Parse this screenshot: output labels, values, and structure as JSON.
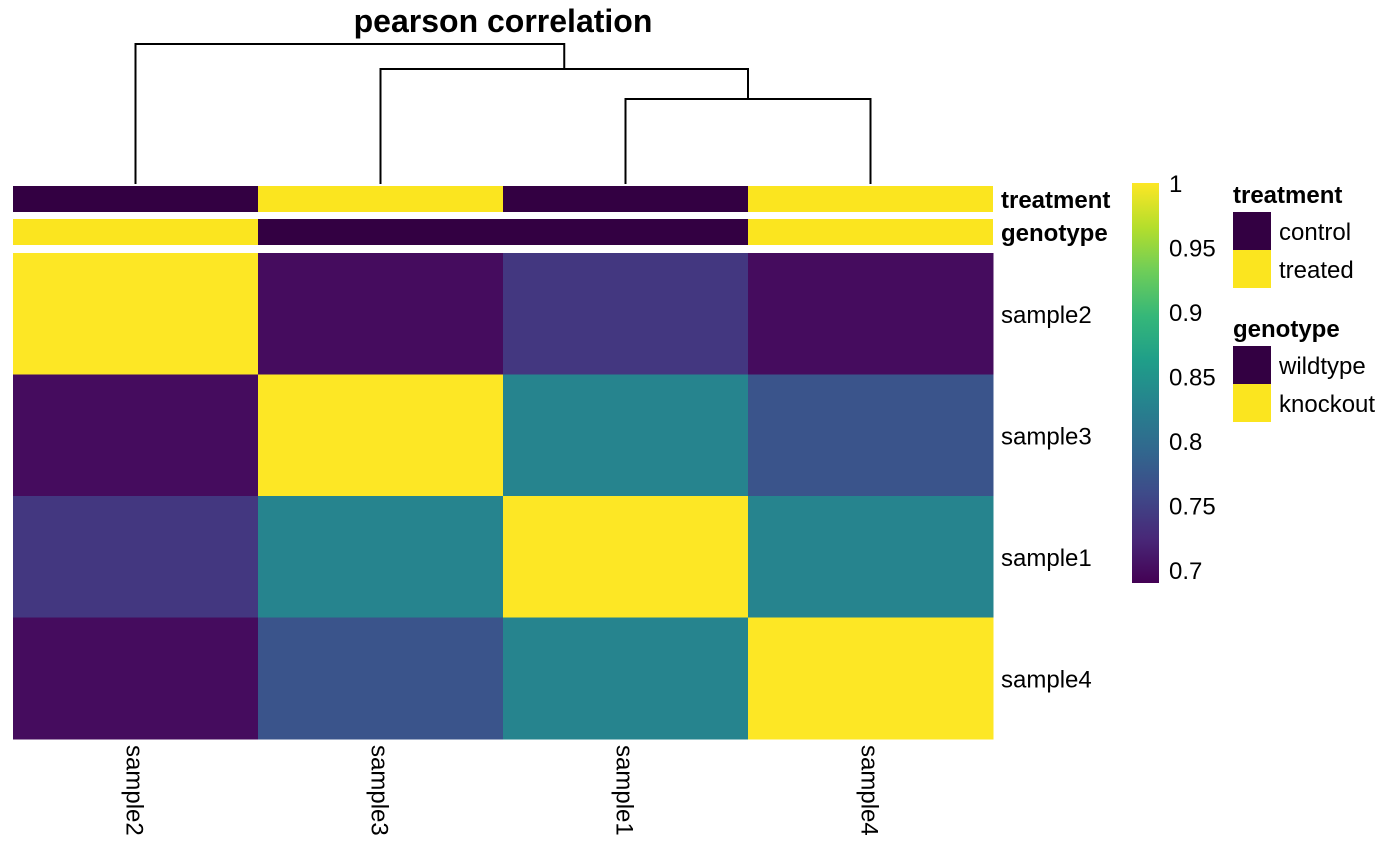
{
  "chart_data": {
    "type": "heatmap",
    "title": "pearson correlation",
    "columns": [
      "sample2",
      "sample3",
      "sample1",
      "sample4"
    ],
    "rows": [
      "sample2",
      "sample3",
      "sample1",
      "sample4"
    ],
    "values": [
      [
        1.0,
        0.7,
        0.74,
        0.7
      ],
      [
        0.7,
        1.0,
        0.83,
        0.77
      ],
      [
        0.74,
        0.83,
        1.0,
        0.83
      ],
      [
        0.7,
        0.77,
        0.83,
        1.0
      ]
    ],
    "color_scale": {
      "name": "viridis",
      "range": [
        0.69,
        1.0
      ],
      "ticks": [
        "1",
        "0.95",
        "0.9",
        "0.85",
        "0.8",
        "0.75",
        "0.7"
      ],
      "tick_values": [
        1.0,
        0.95,
        0.9,
        0.85,
        0.8,
        0.75,
        0.7
      ]
    },
    "annotations": [
      {
        "name": "treatment",
        "values": [
          "control",
          "treated",
          "control",
          "treated"
        ]
      },
      {
        "name": "genotype",
        "values": [
          "knockout",
          "wildtype",
          "wildtype",
          "knockout"
        ]
      }
    ],
    "legends": [
      {
        "title": "treatment",
        "items": [
          {
            "label": "control",
            "color": "#330042"
          },
          {
            "label": "treated",
            "color": "#FBE51F"
          }
        ]
      },
      {
        "title": "genotype",
        "items": [
          {
            "label": "wildtype",
            "color": "#330042"
          },
          {
            "label": "knockout",
            "color": "#FBE51F"
          }
        ]
      }
    ],
    "dendrogram": {
      "merges": [
        {
          "left": "sample1",
          "right": "sample4",
          "height": 0.17
        },
        {
          "left": "sample3",
          "right": "sample1+sample4",
          "height": 0.23
        },
        {
          "left": "sample2",
          "right": "sample3+sample1+sample4",
          "height": 0.28
        }
      ]
    }
  }
}
